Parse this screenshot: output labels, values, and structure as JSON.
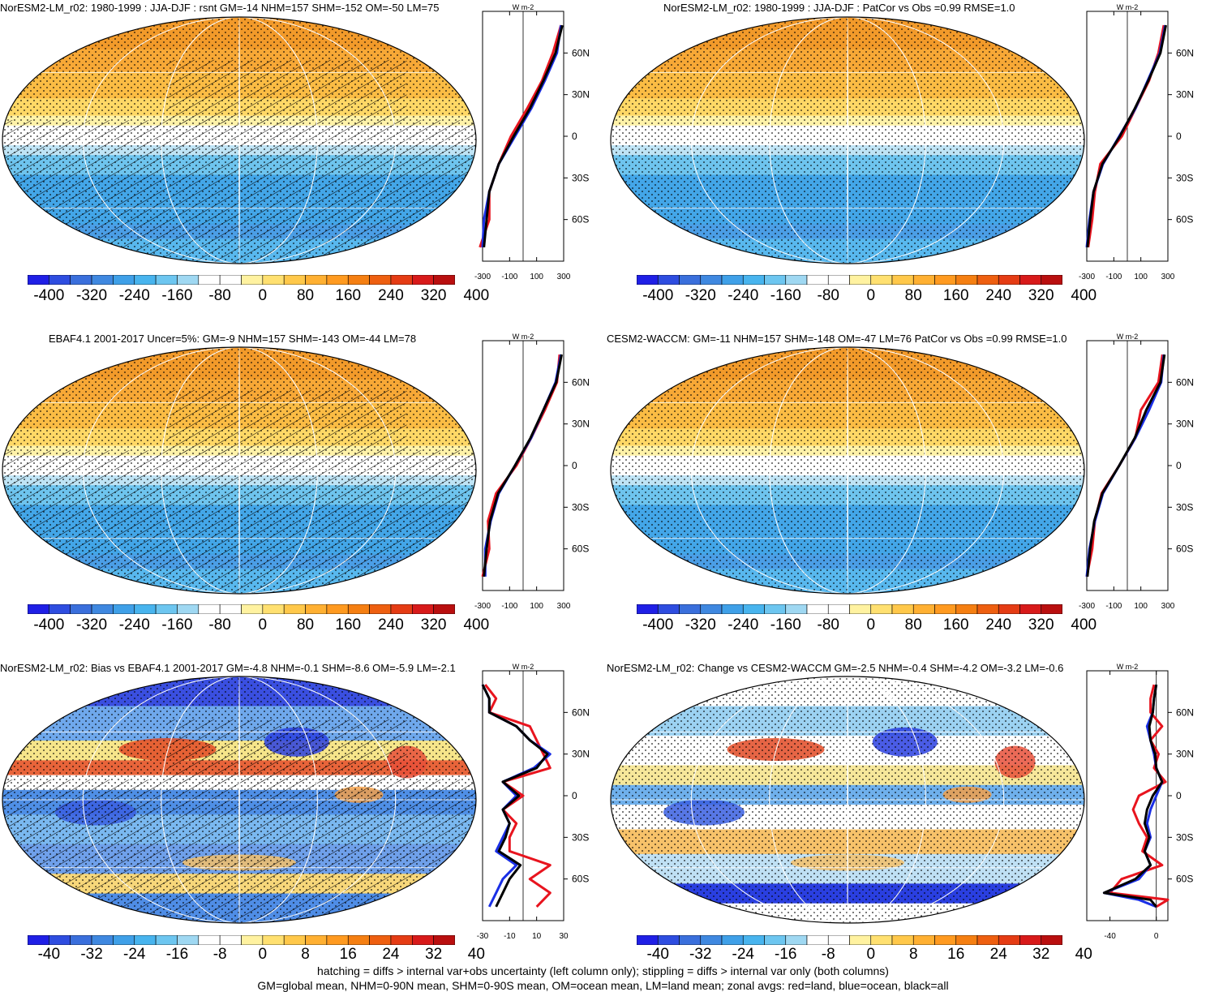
{
  "panels": [
    {
      "title": "NorESM2-LM_r02: 1980-1999 : JJA-DJF : rsnt GM=-14 NHM=157 SHM=-152 OM=-50 LM=75",
      "kind": "abs",
      "hatch": true,
      "zonal": {
        "xlim": [
          -300,
          300
        ],
        "xticks": [
          "-300",
          "-100",
          "100",
          "300"
        ],
        "units": "W m-2",
        "lat": [
          80,
          60,
          40,
          20,
          0,
          -20,
          -40,
          -60,
          -80
        ],
        "land": [
          280,
          220,
          140,
          30,
          -90,
          -180,
          -250,
          -250,
          -320
        ],
        "ocean": [
          280,
          250,
          160,
          60,
          -60,
          -180,
          -250,
          -290,
          -300
        ],
        "all": [
          290,
          240,
          150,
          50,
          -70,
          -180,
          -250,
          -270,
          -290
        ]
      }
    },
    {
      "title": "NorESM2-LM_r02: 1980-1999 : JJA-DJF : PatCor vs Obs =0.99 RMSE=1.0",
      "kind": "abs",
      "hatch": false,
      "zonal": {
        "xlim": [
          -300,
          300
        ],
        "xticks": [
          "-300",
          "-100",
          "100",
          "300"
        ],
        "units": "W m-2",
        "lat": [
          80,
          60,
          40,
          20,
          0,
          -20,
          -40,
          -60,
          -80
        ],
        "land": [
          270,
          230,
          160,
          60,
          -40,
          -200,
          -240,
          -260,
          -290
        ],
        "ocean": [
          280,
          240,
          150,
          60,
          -60,
          -180,
          -250,
          -280,
          -300
        ],
        "all": [
          285,
          245,
          155,
          55,
          -55,
          -185,
          -250,
          -275,
          -295
        ]
      }
    },
    {
      "title": "EBAF4.1 2001-2017 Uncer=5%: GM=-9 NHM=157 SHM=-143 OM=-44 LM=78",
      "kind": "abs",
      "hatch": true,
      "zonal": {
        "xlim": [
          -300,
          300
        ],
        "xticks": [
          "-300",
          "-100",
          "100",
          "300"
        ],
        "units": "W m-2",
        "lat": [
          80,
          60,
          40,
          20,
          0,
          -20,
          -40,
          -60,
          -80
        ],
        "land": [
          270,
          250,
          160,
          60,
          -50,
          -200,
          -260,
          -250,
          -300
        ],
        "ocean": [
          280,
          240,
          150,
          60,
          -60,
          -180,
          -240,
          -280,
          -280
        ],
        "all": [
          285,
          245,
          150,
          55,
          -60,
          -185,
          -245,
          -270,
          -290
        ]
      }
    },
    {
      "title": "CESM2-WACCM: GM=-11 NHM=157 SHM=-148 OM=-47 LM=76 PatCor vs Obs =0.99 RMSE=1.0",
      "kind": "abs",
      "hatch": false,
      "zonal": {
        "xlim": [
          -300,
          300
        ],
        "xticks": [
          "-300",
          "-100",
          "100",
          "300"
        ],
        "units": "W m-2",
        "lat": [
          80,
          60,
          40,
          20,
          0,
          -20,
          -40,
          -60,
          -80
        ],
        "land": [
          260,
          230,
          100,
          60,
          -60,
          -190,
          -240,
          -260,
          -300
        ],
        "ocean": [
          270,
          250,
          160,
          60,
          -60,
          -180,
          -240,
          -280,
          -300
        ],
        "all": [
          275,
          245,
          140,
          55,
          -60,
          -185,
          -245,
          -275,
          -295
        ]
      }
    },
    {
      "title": "NorESM2-LM_r02: Bias vs EBAF4.1 2001-2017 GM=-4.8 NHM=-0.1 SHM=-8.6 OM=-5.9 LM=-2.1",
      "kind": "diff",
      "hatch": true,
      "zonal": {
        "xlim": [
          -30,
          30
        ],
        "xticks": [
          "-30",
          "-10",
          "10",
          "30"
        ],
        "units": "W m-2",
        "lat": [
          80,
          70,
          60,
          50,
          40,
          30,
          20,
          10,
          0,
          -10,
          -20,
          -30,
          -40,
          -50,
          -60,
          -70,
          -80
        ],
        "land": [
          -28,
          -20,
          -25,
          5,
          10,
          15,
          20,
          -15,
          0,
          -15,
          -5,
          -10,
          -10,
          20,
          5,
          20,
          10
        ],
        "ocean": [
          -30,
          -25,
          -25,
          -5,
          5,
          20,
          8,
          -15,
          -5,
          -15,
          -10,
          -15,
          -20,
          -5,
          -15,
          -20,
          -25
        ],
        "all": [
          -30,
          -25,
          -25,
          -5,
          5,
          18,
          10,
          -15,
          -3,
          -15,
          -10,
          -13,
          -18,
          -2,
          -10,
          -15,
          -20
        ]
      }
    },
    {
      "title": "NorESM2-LM_r02: Change vs CESM2-WACCM GM=-2.5 NHM=-0.4 SHM=-4.2 OM=-3.2 LM=-0.6",
      "kind": "diff",
      "hatch": false,
      "zonal": {
        "xlim": [
          -60,
          10
        ],
        "xticks": [
          "-40",
          "0"
        ],
        "units": "W m-2",
        "lat": [
          80,
          70,
          60,
          50,
          40,
          30,
          20,
          10,
          0,
          -10,
          -20,
          -30,
          -40,
          -50,
          -60,
          -70,
          -75,
          -80
        ],
        "land": [
          -2,
          -5,
          -5,
          5,
          -5,
          2,
          -2,
          8,
          -15,
          -20,
          -15,
          -8,
          -12,
          5,
          -30,
          -40,
          10,
          0
        ],
        "ocean": [
          0,
          -2,
          -3,
          -8,
          -5,
          -2,
          0,
          5,
          0,
          -5,
          -8,
          -5,
          -10,
          -5,
          -15,
          -45,
          -15,
          0
        ],
        "all": [
          0,
          -2,
          -3,
          -6,
          -5,
          -1,
          0,
          5,
          -3,
          -8,
          -10,
          -6,
          -10,
          -5,
          -18,
          -45,
          -5,
          0
        ]
      }
    }
  ],
  "lat_labels": [
    "60N",
    "30N",
    "0",
    "30S",
    "60S"
  ],
  "colorbars": {
    "abs": [
      "-400",
      "-320",
      "-240",
      "-160",
      "-80",
      "0",
      "80",
      "160",
      "240",
      "320",
      "400"
    ],
    "diff": [
      "-40",
      "-32",
      "-24",
      "-16",
      "-8",
      "0",
      "8",
      "16",
      "24",
      "32",
      "40"
    ]
  },
  "colors": [
    "#1f1fe6",
    "#2e4de0",
    "#3a6fdc",
    "#3f88e0",
    "#3fa0e8",
    "#48b4ee",
    "#6dc6f0",
    "#9fd8f2",
    "#ffffff",
    "#ffffff",
    "#fff2a0",
    "#ffe070",
    "#ffc84a",
    "#ffb032",
    "#ff9a20",
    "#f57f12",
    "#ee5f10",
    "#e53c14",
    "#d81a1a",
    "#b90f0f"
  ],
  "footer": {
    "line1": "hatching = diffs > internal var+obs uncertainty (left column only); stippling = diffs > internal var only (both columns)",
    "line2": "GM=global mean, NHM=0-90N mean, SHM=0-90S mean, OM=ocean mean, LM=land mean; zonal avgs: red=land, blue=ocean, black=all"
  }
}
